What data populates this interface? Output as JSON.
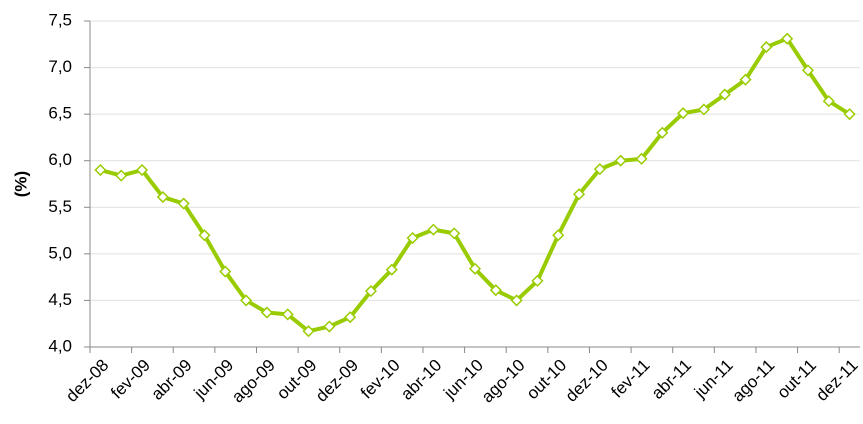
{
  "chart_data": {
    "type": "line",
    "y_label": "(%)",
    "categories": [
      "dez-08",
      null,
      "fev-09",
      null,
      "abr-09",
      null,
      "jun-09",
      null,
      "ago-09",
      null,
      "out-09",
      null,
      "dez-09",
      null,
      "fev-10",
      null,
      "abr-10",
      null,
      "jun-10",
      null,
      "ago-10",
      null,
      "out-10",
      null,
      "dez-10",
      null,
      "fev-11",
      null,
      "abr-11",
      null,
      "jun-11",
      null,
      "ago-11",
      null,
      "out-11",
      null,
      "dez-11"
    ],
    "values": [
      5.9,
      5.84,
      5.9,
      5.61,
      5.54,
      5.2,
      4.81,
      4.5,
      4.37,
      4.35,
      4.17,
      4.22,
      4.32,
      4.6,
      4.83,
      5.17,
      5.26,
      5.22,
      4.84,
      4.61,
      4.5,
      4.71,
      5.2,
      5.64,
      5.91,
      6.0,
      6.02,
      6.3,
      6.51,
      6.55,
      6.71,
      6.87,
      7.22,
      7.31,
      6.97,
      6.64,
      6.5
    ],
    "color": "#99cc00",
    "ylim": [
      4.0,
      7.5
    ],
    "yticks": [
      {
        "value": 4.0,
        "label": "4,0"
      },
      {
        "value": 4.5,
        "label": "4,5"
      },
      {
        "value": 5.0,
        "label": "5,0"
      },
      {
        "value": 5.5,
        "label": "5,5"
      },
      {
        "value": 6.0,
        "label": "6,0"
      },
      {
        "value": 6.5,
        "label": "6,5"
      },
      {
        "value": 7.0,
        "label": "7,0"
      },
      {
        "value": 7.5,
        "label": "7,5"
      }
    ],
    "grid": true
  }
}
